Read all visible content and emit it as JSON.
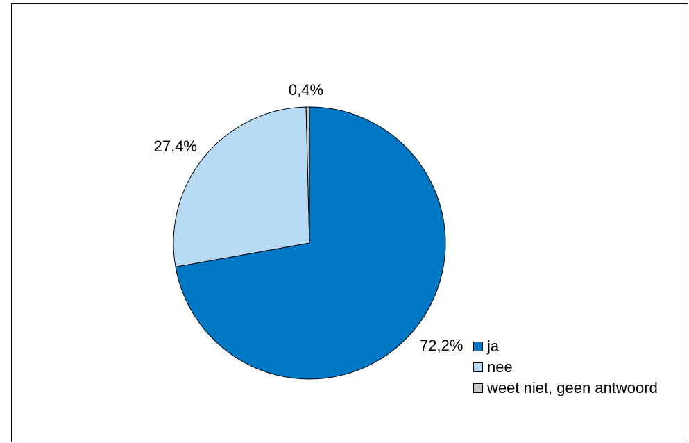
{
  "chart_data": {
    "type": "pie",
    "title": "",
    "slices": [
      {
        "name": "ja",
        "value": 72.2,
        "label": "72,2%",
        "color": "#0077C4"
      },
      {
        "name": "nee",
        "value": 27.4,
        "label": "27,4%",
        "color": "#B7DBF4"
      },
      {
        "name": "weet niet, geen antwoord",
        "value": 0.4,
        "label": "0,4%",
        "color": "#C8C8C8"
      }
    ],
    "start_angle": "12 o'clock",
    "direction": "clockwise",
    "legend_position": "bottom-right"
  }
}
